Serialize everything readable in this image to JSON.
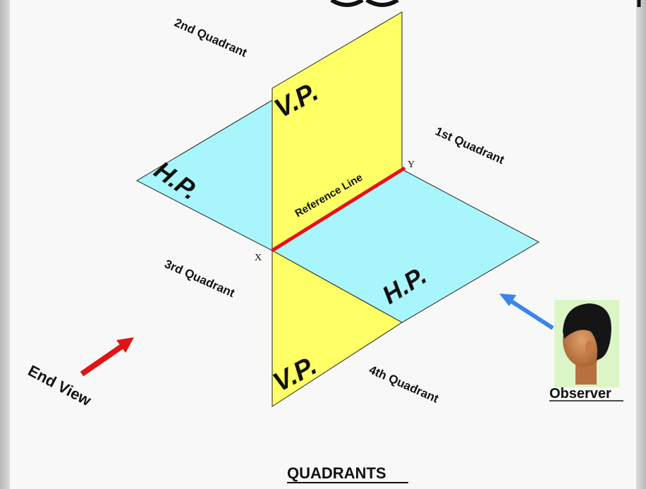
{
  "diagram": {
    "title": "QUADRANTS",
    "quadrants": {
      "first": "1st Quadrant",
      "second": "2nd Quadrant",
      "third": "3rd Quadrant",
      "fourth": "4th Quadrant"
    },
    "planes": {
      "vp_top": "V.P.",
      "vp_bottom": "V.P.",
      "hp_left": "H.P.",
      "hp_right": "H.P."
    },
    "reference_line": "Reference Line",
    "points": {
      "x": "X",
      "y": "Y"
    },
    "end_view": "End View",
    "observer": "Observer",
    "colors": {
      "vp": "#ffff66",
      "hp": "#a8f6fb",
      "reference_line": "#e8101a",
      "end_view_arrow": "#e01414",
      "observer_arrow": "#3a86e8",
      "background": "#f8f8f8"
    }
  }
}
